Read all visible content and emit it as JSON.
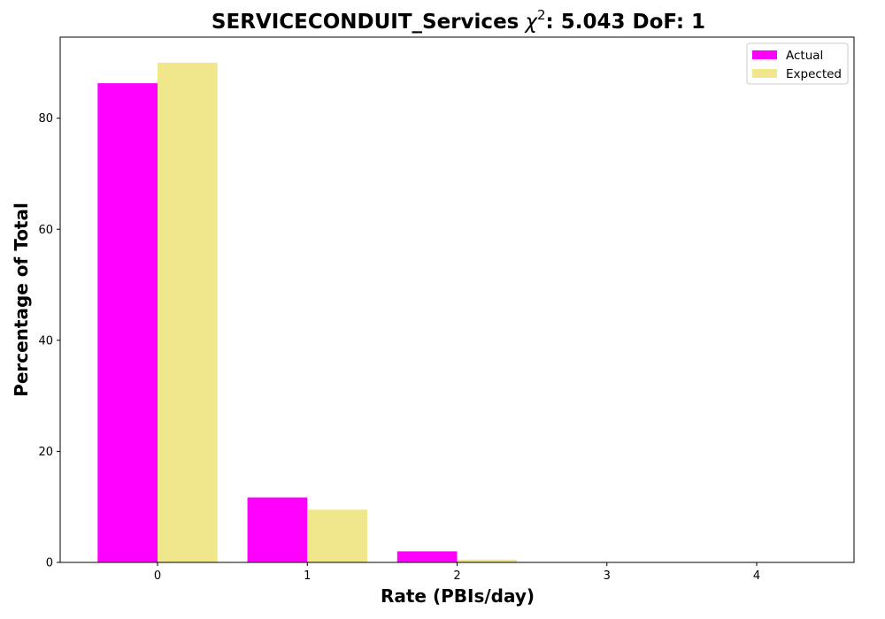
{
  "chart_data": {
    "type": "bar",
    "title": "SERVICECONDUIT_Services",
    "title_stat_symbol": "χ",
    "title_stat_exponent": "2",
    "title_stat_rest": ": 5.043 DoF: 1",
    "xlabel": "Rate (PBIs/day)",
    "ylabel": "Percentage of Total",
    "categories": [
      "0",
      "1",
      "2",
      "3",
      "4"
    ],
    "x": [
      0,
      1,
      2,
      3,
      4
    ],
    "series": [
      {
        "name": "Actual",
        "color": "#ff00ff",
        "values": [
          86.3,
          11.7,
          2.0,
          0.0,
          0.0
        ]
      },
      {
        "name": "Expected",
        "color": "#f0e68c",
        "values": [
          90.0,
          9.5,
          0.5,
          0.0,
          0.0
        ]
      }
    ],
    "ylim": [
      0,
      94.6
    ],
    "xlim": [
      -0.65,
      4.65
    ],
    "yticks": [
      0,
      20,
      40,
      60,
      80
    ],
    "legend_position": "top-right",
    "grid": false
  }
}
